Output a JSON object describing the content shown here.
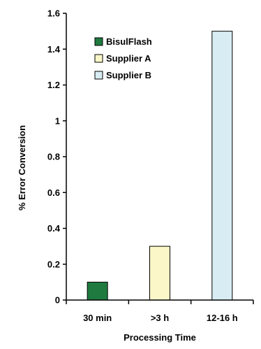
{
  "chart_data": {
    "type": "bar",
    "categories": [
      "30 min",
      ">3 h",
      "12-16 h"
    ],
    "series": [
      {
        "name": "BisulFlash",
        "color": "#1f7a3f",
        "values": [
          0.1,
          null,
          null
        ]
      },
      {
        "name": "Supplier A",
        "color": "#fbf7c8",
        "values": [
          null,
          0.3,
          null
        ]
      },
      {
        "name": "Supplier B",
        "color": "#d8edf3",
        "values": [
          null,
          null,
          1.5
        ]
      }
    ],
    "xlabel": "Processing Time",
    "ylabel": "% Error Conversion",
    "ylim": [
      0,
      1.6
    ],
    "yticks": [
      0,
      0.2,
      0.4,
      0.6,
      0.8,
      1,
      1.2,
      1.4,
      1.6
    ],
    "ytick_labels": [
      "0",
      "0.2",
      "0.4",
      "0.6",
      "0.8",
      "1",
      "1.2",
      "1.4",
      "1.6"
    ],
    "grid": false,
    "legend_position": "top-left"
  }
}
